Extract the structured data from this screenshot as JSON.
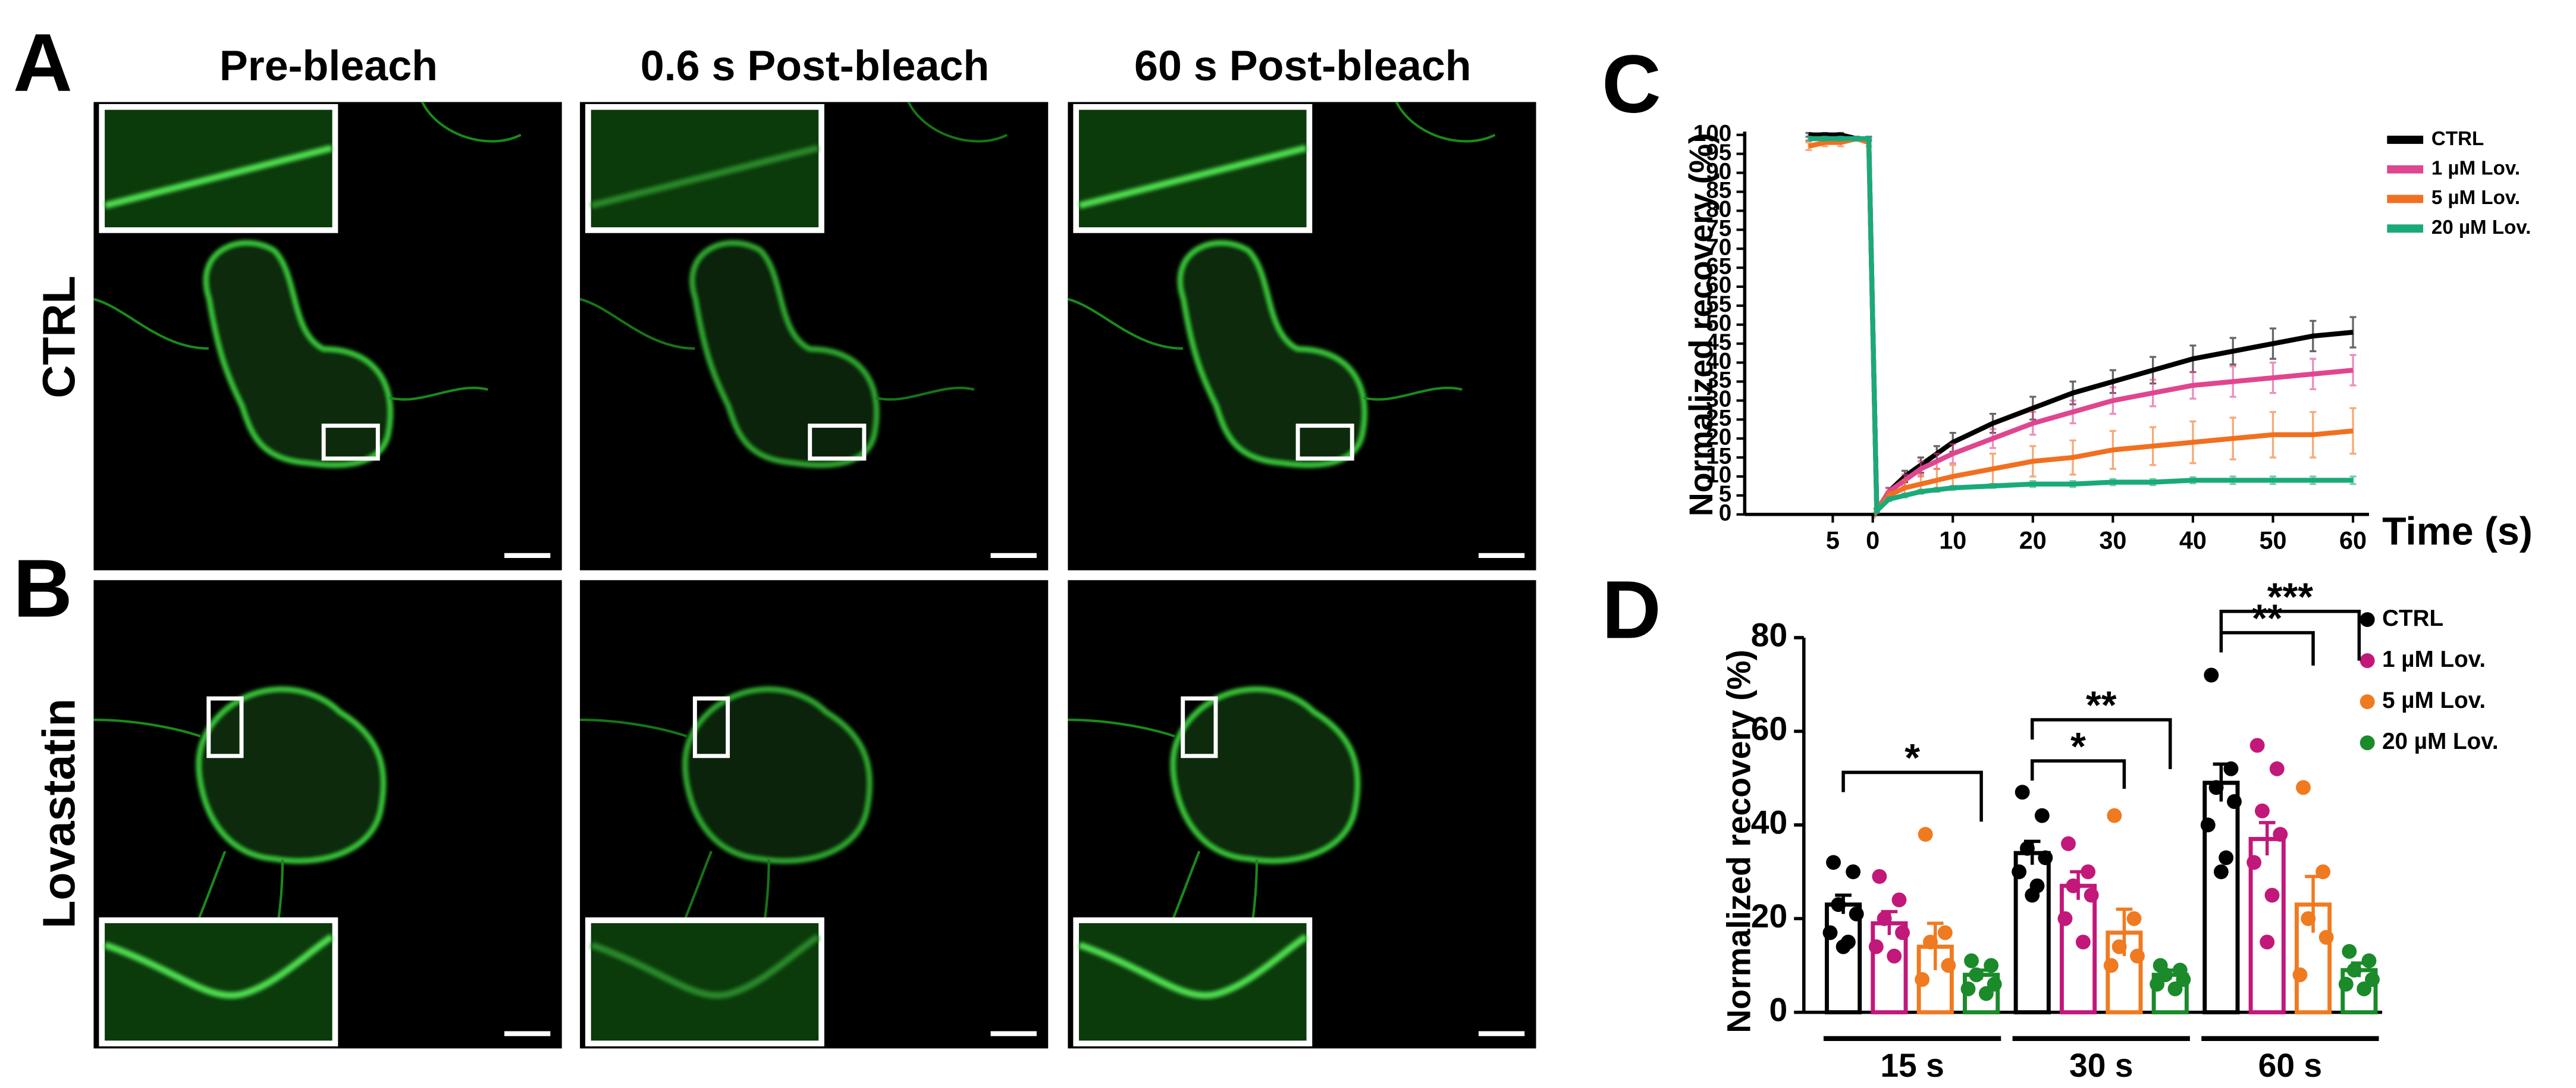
{
  "figure": {
    "panel_labels": [
      "A",
      "B",
      "C",
      "D"
    ],
    "columns": [
      "Pre-bleach",
      "0.6 s Post-bleach",
      "60 s Post-bleach"
    ],
    "rows": [
      "CTRL",
      "Lovastatin"
    ]
  },
  "chart_data": [
    {
      "type": "line",
      "ylabel": "Normalized recovery (%)",
      "xlabel": "Time (s)",
      "x": [
        -8,
        -6,
        -4,
        -2,
        -0.5,
        0.5,
        2,
        4,
        6,
        8,
        10,
        15,
        20,
        25,
        30,
        35,
        40,
        45,
        50,
        55,
        60
      ],
      "xlim": [
        -16,
        62
      ],
      "xticks": [
        {
          "value": -5,
          "label": "5"
        },
        0,
        10,
        20,
        30,
        40,
        50,
        60
      ],
      "ylim": [
        0,
        100
      ],
      "yticks": [
        0,
        5,
        10,
        15,
        20,
        25,
        30,
        35,
        40,
        45,
        50,
        55,
        60,
        65,
        70,
        75,
        80,
        85,
        90,
        95,
        100
      ],
      "series": [
        {
          "name": "CTRL",
          "color": "#000000",
          "values": [
            100,
            100,
            100,
            99,
            99,
            1,
            6,
            10,
            13,
            16,
            19,
            24,
            28,
            32,
            35,
            38,
            41,
            43,
            45,
            47,
            48
          ],
          "errors": [
            0.5,
            0.5,
            0.5,
            0.5,
            0.5,
            0.5,
            1,
            1.5,
            2,
            2,
            2.5,
            2.5,
            3,
            3,
            3,
            3.5,
            3.5,
            3.5,
            4,
            4,
            4
          ]
        },
        {
          "name": "1 µM Lov.",
          "color": "#e0458f",
          "values": [
            99,
            99,
            99,
            99,
            99,
            1,
            6,
            9,
            12,
            14,
            16,
            20,
            24,
            27,
            30,
            32,
            34,
            35,
            36,
            37,
            38
          ],
          "errors": [
            0.5,
            0.5,
            0.5,
            0.5,
            0.5,
            0.5,
            1,
            1.5,
            2,
            2,
            2.5,
            2.5,
            3,
            3,
            3.5,
            3.5,
            3.5,
            4,
            4,
            4,
            4
          ]
        },
        {
          "name": "5 µM Lov.",
          "color": "#f07020",
          "values": [
            97,
            98,
            98,
            99,
            98,
            1,
            5,
            7,
            8,
            9,
            10,
            12,
            14,
            15,
            17,
            18,
            19,
            20,
            21,
            21,
            22
          ],
          "errors": [
            1,
            1,
            1,
            0.5,
            1,
            0.5,
            1,
            2,
            2.5,
            3,
            3,
            4,
            4,
            4.5,
            5,
            5,
            5.5,
            5.5,
            6,
            6,
            6
          ]
        },
        {
          "name": "20 µM Lov.",
          "color": "#1aaa7a",
          "values": [
            99,
            99,
            99,
            99,
            99,
            1,
            4,
            5,
            6,
            6.5,
            7,
            7.5,
            8,
            8,
            8.5,
            8.5,
            9,
            9,
            9,
            9,
            9
          ],
          "errors": [
            0.5,
            0.5,
            0.5,
            0.5,
            0.5,
            0.5,
            0.5,
            0.5,
            0.5,
            0.5,
            0.5,
            0.5,
            0.8,
            0.8,
            0.8,
            0.8,
            0.8,
            1,
            1,
            1,
            1
          ]
        }
      ],
      "legend": "upper right"
    },
    {
      "type": "bar",
      "ylabel": "Normalized recovery (%)",
      "categories": [
        "15 s",
        "30 s",
        "60 s"
      ],
      "ylim": [
        0,
        80
      ],
      "yticks": [
        0,
        20,
        40,
        60,
        80
      ],
      "series": [
        {
          "name": "CTRL",
          "color": "#000000",
          "values": [
            23,
            34,
            49
          ],
          "errors": [
            2,
            2.5,
            4
          ],
          "points": [
            [
              32,
              30,
              23,
              21,
              17,
              15,
              14
            ],
            [
              47,
              42,
              35,
              33,
              30,
              27,
              25
            ],
            [
              72,
              52,
              48,
              45,
              40,
              33,
              30
            ]
          ]
        },
        {
          "name": "1 µM Lov.",
          "color": "#c2187a",
          "values": [
            19,
            27,
            37
          ],
          "errors": [
            2.5,
            3,
            3.5
          ],
          "points": [
            [
              29,
              24,
              20,
              17,
              14,
              12
            ],
            [
              36,
              30,
              27,
              25,
              20,
              15
            ],
            [
              57,
              52,
              43,
              38,
              32,
              25,
              15
            ]
          ]
        },
        {
          "name": "5 µM Lov.",
          "color": "#f07a20",
          "values": [
            14,
            17,
            23
          ],
          "errors": [
            5,
            5,
            6
          ],
          "points": [
            [
              38,
              17,
              15,
              10,
              7
            ],
            [
              42,
              20,
              14,
              12,
              10
            ],
            [
              48,
              30,
              20,
              16,
              8
            ]
          ]
        },
        {
          "name": "20 µM Lov.",
          "color": "#1a8a2a",
          "values": [
            8,
            8,
            9
          ],
          "errors": [
            1,
            1,
            1.5
          ],
          "points": [
            [
              11,
              10,
              8,
              6,
              5,
              4
            ],
            [
              10,
              9,
              8,
              7,
              6,
              5
            ],
            [
              13,
              11,
              9,
              7,
              6,
              5
            ]
          ]
        }
      ],
      "annotations": [
        "*",
        "*",
        "**",
        "**",
        "***"
      ],
      "legend": "upper right"
    }
  ]
}
